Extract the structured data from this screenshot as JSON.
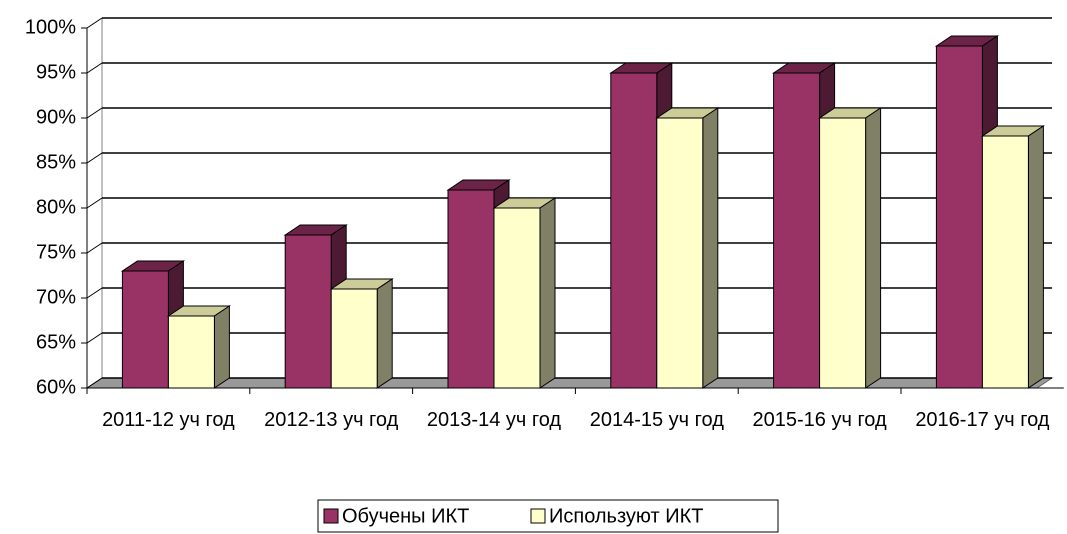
{
  "chart_data": {
    "type": "bar3d",
    "categories": [
      "2011-12 уч год",
      "2012-13 уч год",
      "2013-14 уч год",
      "2014-15 уч год",
      "2015-16 уч год",
      "2016-17 уч год"
    ],
    "series": [
      {
        "name": "Обучены ИКТ",
        "color": "#993366",
        "values": [
          73,
          77,
          82,
          95,
          95,
          98
        ]
      },
      {
        "name": "Используют ИКТ",
        "color": "#ffffcc",
        "values": [
          68,
          71,
          80,
          90,
          90,
          88
        ]
      }
    ],
    "ylim": [
      60,
      100
    ],
    "yticks": [
      {
        "value": 60,
        "label": "60%"
      },
      {
        "value": 65,
        "label": "65%"
      },
      {
        "value": 70,
        "label": "70%"
      },
      {
        "value": 75,
        "label": "75%"
      },
      {
        "value": 80,
        "label": "80%"
      },
      {
        "value": 85,
        "label": "85%"
      },
      {
        "value": 90,
        "label": "90%"
      },
      {
        "value": 95,
        "label": "95%"
      },
      {
        "value": 100,
        "label": "100%"
      }
    ],
    "grid": true,
    "legend": "bottom"
  }
}
